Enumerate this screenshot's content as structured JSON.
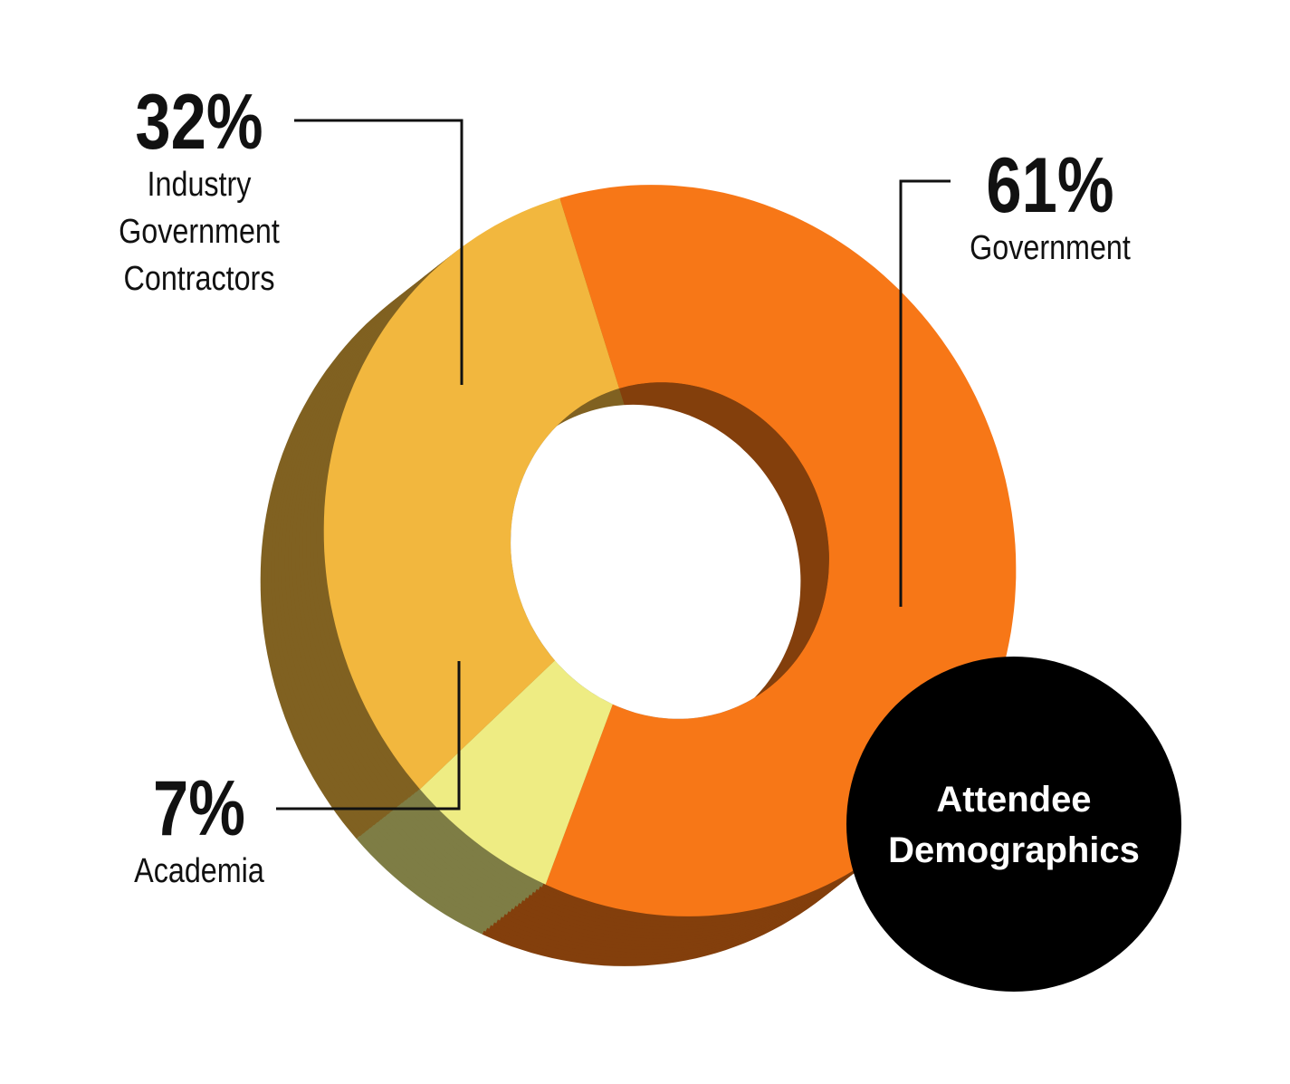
{
  "chart_data": {
    "type": "donut",
    "title": "Attendee Demographics",
    "categories": [
      "Government",
      "Academia",
      "Industry Government Contractors"
    ],
    "values": [
      61,
      7,
      32
    ],
    "value_labels": [
      "61%",
      "7%",
      "32%"
    ],
    "colors": [
      "#f77717",
      "#eeec83",
      "#f2b73e"
    ]
  }
}
